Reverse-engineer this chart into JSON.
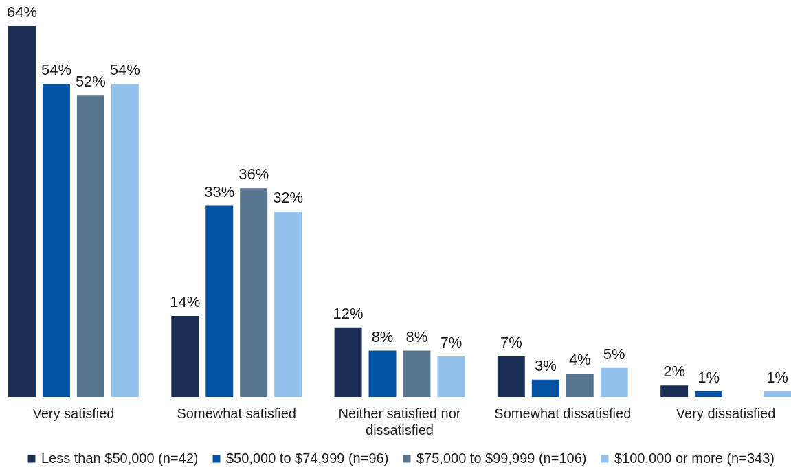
{
  "chart_data": {
    "type": "bar",
    "categories": [
      "Very satisfied",
      "Somewhat satisfied",
      "Neither satisfied nor dissatisfied",
      "Somewhat dissatisfied",
      "Very dissatisfied"
    ],
    "series": [
      {
        "name": "Less than $50,000 (n=42)",
        "color": "#1b2f55",
        "values": [
          64,
          14,
          12,
          7,
          2
        ],
        "value_labels": [
          "64%",
          "14%",
          "12%",
          "7%",
          "2%"
        ]
      },
      {
        "name": "$50,000 to $74,999 (n=96)",
        "color": "#0353a4",
        "values": [
          54,
          33,
          8,
          3,
          1
        ],
        "value_labels": [
          "54%",
          "33%",
          "8%",
          "3%",
          "1%"
        ]
      },
      {
        "name": "$75,000 to $99,999 (n=106)",
        "color": "#587590",
        "values": [
          52,
          36,
          8,
          4,
          null
        ],
        "value_labels": [
          "52%",
          "36%",
          "8%",
          "4%",
          null
        ]
      },
      {
        "name": "$100,000 or more (n=343)",
        "color": "#92c1ee",
        "values": [
          54,
          32,
          7,
          5,
          1
        ],
        "value_labels": [
          "54%",
          "32%",
          "7%",
          "5%",
          "1%"
        ]
      }
    ],
    "legend": "bottom"
  }
}
